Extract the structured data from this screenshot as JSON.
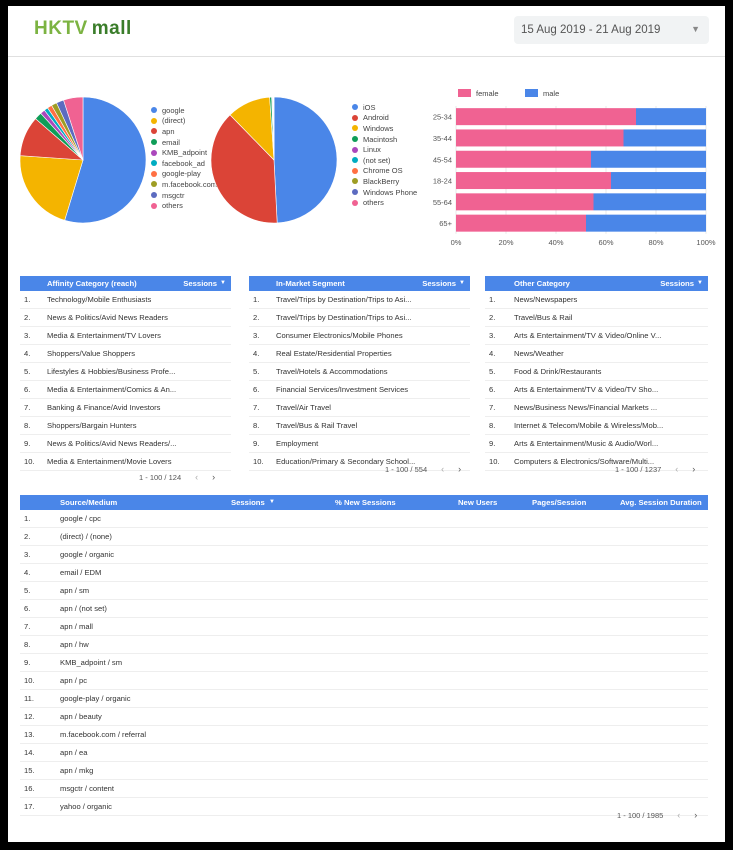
{
  "header": {
    "logo_text_1": "HKTV",
    "logo_text_2": "mall",
    "date_range": "15 Aug 2019 - 21 Aug 2019",
    "date_caret": "▼"
  },
  "pie_source": {
    "legend": [
      "google",
      "(direct)",
      "apn",
      "email",
      "KMB_adpoint",
      "facebook_ad",
      "google-play",
      "m.facebook.com",
      "msgctr",
      "others"
    ],
    "colors": [
      "#4a86e8",
      "#f4b400",
      "#db4437",
      "#0f9d58",
      "#ab47bc",
      "#00acc1",
      "#ff7043",
      "#9e9d24",
      "#5c6bc0",
      "#f06292"
    ],
    "values": [
      54.7,
      21.4,
      10.3,
      1.9,
      1.2,
      1.0,
      1.2,
      1.4,
      1.9,
      5.0
    ]
  },
  "pie_os": {
    "legend": [
      "iOS",
      "Android",
      "Windows",
      "Macintosh",
      "Linux",
      "(not set)",
      "Chrome OS",
      "BlackBerry",
      "Windows Phone",
      "others"
    ],
    "colors": [
      "#4a86e8",
      "#db4437",
      "#f4b400",
      "#0f9d58",
      "#ab47bc",
      "#00acc1",
      "#ff7043",
      "#9e9d24",
      "#5c6bc0",
      "#f06292"
    ],
    "values": [
      49.2,
      38.5,
      11.2,
      0.5,
      0.2,
      0.1,
      0.1,
      0.1,
      0.05,
      0.05
    ]
  },
  "chart_data": {
    "type": "bar",
    "orientation": "horizontal",
    "stacked": "percent",
    "categories": [
      "25-34",
      "35-44",
      "45-54",
      "18-24",
      "55-64",
      "65+"
    ],
    "series": [
      {
        "name": "female",
        "color": "#f06292",
        "values": [
          72,
          67,
          54,
          62,
          55,
          52
        ]
      },
      {
        "name": "male",
        "color": "#4a86e8",
        "values": [
          28,
          33,
          46,
          38,
          45,
          48
        ]
      }
    ],
    "xticks": [
      "0%",
      "20%",
      "40%",
      "60%",
      "80%",
      "100%"
    ],
    "xlim": [
      0,
      100
    ],
    "legend_position": "top-left"
  },
  "affinity": {
    "col1": "Affinity Category (reach)",
    "col2": "Sessions",
    "sort": "▼",
    "rows": [
      {
        "n": "1.",
        "name": "Technology/Mobile Enthusiasts"
      },
      {
        "n": "2.",
        "name": "News & Politics/Avid News Readers"
      },
      {
        "n": "3.",
        "name": "Media & Entertainment/TV Lovers"
      },
      {
        "n": "4.",
        "name": "Shoppers/Value Shoppers"
      },
      {
        "n": "5.",
        "name": "Lifestyles & Hobbies/Business Profe..."
      },
      {
        "n": "6.",
        "name": "Media & Entertainment/Comics & An..."
      },
      {
        "n": "7.",
        "name": "Banking & Finance/Avid Investors"
      },
      {
        "n": "8.",
        "name": "Shoppers/Bargain Hunters"
      },
      {
        "n": "9.",
        "name": "News & Politics/Avid News Readers/..."
      },
      {
        "n": "10.",
        "name": "Media & Entertainment/Movie Lovers"
      }
    ],
    "pager": "1 - 100 / 124"
  },
  "inmarket": {
    "col1": "In-Market Segment",
    "col2": "Sessions",
    "sort": "▼",
    "rows": [
      {
        "n": "1.",
        "name": "Travel/Trips by Destination/Trips to Asi..."
      },
      {
        "n": "2.",
        "name": "Travel/Trips by Destination/Trips to Asi..."
      },
      {
        "n": "3.",
        "name": "Consumer Electronics/Mobile Phones"
      },
      {
        "n": "4.",
        "name": "Real Estate/Residential Properties"
      },
      {
        "n": "5.",
        "name": "Travel/Hotels & Accommodations"
      },
      {
        "n": "6.",
        "name": "Financial Services/Investment Services"
      },
      {
        "n": "7.",
        "name": "Travel/Air Travel"
      },
      {
        "n": "8.",
        "name": "Travel/Bus & Rail Travel"
      },
      {
        "n": "9.",
        "name": "Employment"
      },
      {
        "n": "10.",
        "name": "Education/Primary & Secondary School..."
      }
    ],
    "pager": "1 - 100 / 554"
  },
  "other": {
    "col1": "Other Category",
    "col2": "Sessions",
    "sort": "▼",
    "rows": [
      {
        "n": "1.",
        "name": "News/Newspapers"
      },
      {
        "n": "2.",
        "name": "Travel/Bus & Rail"
      },
      {
        "n": "3.",
        "name": "Arts & Entertainment/TV & Video/Online V..."
      },
      {
        "n": "4.",
        "name": "News/Weather"
      },
      {
        "n": "5.",
        "name": "Food & Drink/Restaurants"
      },
      {
        "n": "6.",
        "name": "Arts & Entertainment/TV & Video/TV Sho..."
      },
      {
        "n": "7.",
        "name": "News/Business News/Financial Markets ..."
      },
      {
        "n": "8.",
        "name": "Internet & Telecom/Mobile & Wireless/Mob..."
      },
      {
        "n": "9.",
        "name": "Arts & Entertainment/Music & Audio/Worl..."
      },
      {
        "n": "10.",
        "name": "Computers & Electronics/Software/Multi..."
      }
    ],
    "pager": "1 - 100 / 1237"
  },
  "source_table": {
    "cols": [
      "Source/Medium",
      "Sessions",
      "% New Sessions",
      "New Users",
      "Pages/Session",
      "Avg. Session Duration"
    ],
    "sort": "▼",
    "rows": [
      {
        "n": "1.",
        "name": "google / cpc"
      },
      {
        "n": "2.",
        "name": "(direct) / (none)"
      },
      {
        "n": "3.",
        "name": "google / organic"
      },
      {
        "n": "4.",
        "name": "email / EDM"
      },
      {
        "n": "5.",
        "name": "apn / sm"
      },
      {
        "n": "6.",
        "name": "apn / (not set)"
      },
      {
        "n": "7.",
        "name": "apn / mall"
      },
      {
        "n": "8.",
        "name": "apn / hw"
      },
      {
        "n": "9.",
        "name": "KMB_adpoint / sm"
      },
      {
        "n": "10.",
        "name": "apn / pc"
      },
      {
        "n": "11.",
        "name": "google-play / organic"
      },
      {
        "n": "12.",
        "name": "apn / beauty"
      },
      {
        "n": "13.",
        "name": "m.facebook.com / referral"
      },
      {
        "n": "14.",
        "name": "apn / ea"
      },
      {
        "n": "15.",
        "name": "apn / mkg"
      },
      {
        "n": "16.",
        "name": "msgctr / content"
      },
      {
        "n": "17.",
        "name": "yahoo / organic"
      }
    ],
    "pager": "1 - 100 / 1985"
  },
  "icons": {
    "prev": "‹",
    "next": "›"
  }
}
